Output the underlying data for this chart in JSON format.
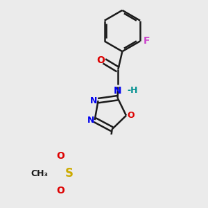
{
  "background_color": "#ebebeb",
  "bond_color": "#1a1a1a",
  "bond_width": 1.8,
  "dbo": 0.013,
  "figsize": [
    3.0,
    3.0
  ],
  "dpi": 100,
  "xlim": [
    0.05,
    0.95
  ],
  "ylim": [
    0.02,
    0.98
  ]
}
